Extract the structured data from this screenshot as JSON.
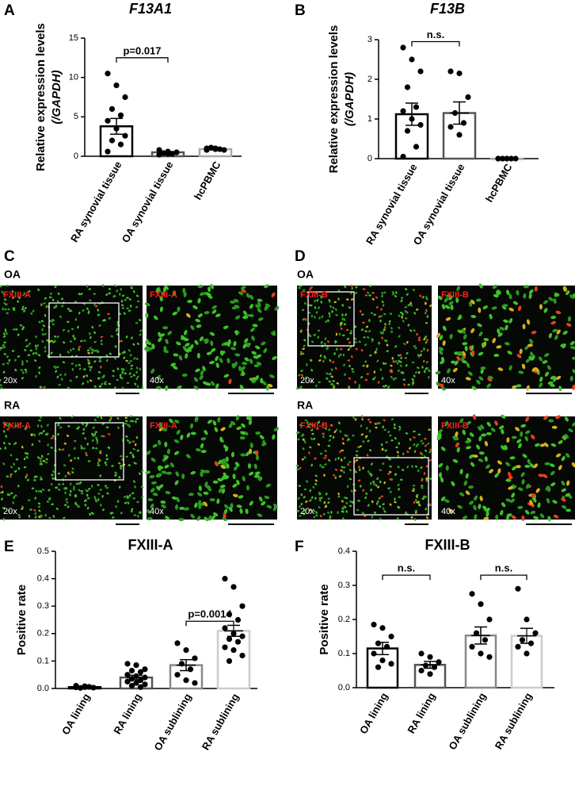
{
  "chart_data": [
    {
      "type": "bar",
      "label": "A",
      "title": "F13A1",
      "ylabel": [
        "Relative expression levels",
        "(/GAPDH)"
      ],
      "categories": [
        "RA synovial tissue",
        "OA synovial tissue",
        "hcPBMC"
      ],
      "values": [
        3.8,
        0.5,
        0.9
      ],
      "errors": [
        1.0,
        0.1,
        0.1
      ],
      "points": [
        [
          10.5,
          9,
          7.5,
          6,
          5.2,
          4.5,
          3.5,
          2.6,
          2,
          1.5,
          0.6
        ],
        [
          0.8,
          0.6,
          0.5,
          0.4,
          0.3,
          0.2,
          0.3
        ],
        [
          1.0,
          0.9,
          0.8,
          1.1,
          0.9,
          0.8,
          1.0
        ]
      ],
      "colors": [
        "#000000",
        "#555555",
        "#aaaaaa"
      ],
      "ylim": [
        0,
        15
      ],
      "yticks": [
        0,
        5,
        10,
        15
      ],
      "annotations": [
        {
          "text": "p=0.017",
          "from": 0,
          "to": 1,
          "y": 12.5
        }
      ]
    },
    {
      "type": "bar",
      "label": "B",
      "title": "F13B",
      "ylabel": [
        "Relative expression levels",
        "(/GAPDH)"
      ],
      "categories": [
        "RA synovial tissue",
        "OA synovial tissue",
        "hcPBMC"
      ],
      "values": [
        1.12,
        1.15,
        0.0
      ],
      "errors": [
        0.28,
        0.28,
        0.0
      ],
      "points": [
        [
          2.8,
          2.5,
          2.2,
          1.8,
          1.3,
          1.2,
          1.0,
          0.85,
          0.7,
          0.3,
          0.05
        ],
        [
          2.2,
          2.15,
          1.55,
          1.15,
          0.9,
          0.8,
          0.6
        ],
        [
          0,
          0,
          0,
          0,
          0,
          0,
          0
        ]
      ],
      "colors": [
        "#000000",
        "#555555",
        "#aaaaaa"
      ],
      "ylim": [
        0,
        3
      ],
      "yticks": [
        0,
        1,
        2,
        3
      ],
      "annotations": [
        {
          "text": "n.s.",
          "from": 0,
          "to": 1,
          "y": 2.95
        }
      ]
    },
    {
      "type": "bar",
      "label": "E",
      "title": "FXIII-A",
      "ylabel": [
        "Positive rate"
      ],
      "categories": [
        "OA lining",
        "RA lining",
        "OA sublining",
        "RA sublining"
      ],
      "values": [
        0.005,
        0.04,
        0.085,
        0.21
      ],
      "errors": [
        0.002,
        0.008,
        0.02,
        0.02
      ],
      "points": [
        [
          0.01,
          0.005,
          0.003,
          0.002,
          0.006,
          0.004,
          0.008
        ],
        [
          0.09,
          0.085,
          0.07,
          0.065,
          0.06,
          0.05,
          0.045,
          0.04,
          0.035,
          0.03,
          0.025,
          0.02,
          0.015,
          0.01,
          0.005
        ],
        [
          0.165,
          0.14,
          0.11,
          0.09,
          0.07,
          0.05,
          0.03,
          0.02
        ],
        [
          0.4,
          0.37,
          0.3,
          0.27,
          0.25,
          0.22,
          0.2,
          0.19,
          0.18,
          0.17,
          0.15,
          0.14,
          0.12,
          0.1
        ]
      ],
      "colors": [
        "#000000",
        "#555555",
        "#888888",
        "#cccccc"
      ],
      "ylim": [
        0,
        0.5
      ],
      "yticks": [
        {
          "value": 0,
          "label": "0.0"
        },
        0.1,
        0.2,
        0.3,
        0.4,
        0.5
      ],
      "annotations": [
        {
          "text": "p=0.0014",
          "from": 2,
          "to": 3,
          "y": 0.245
        }
      ]
    },
    {
      "type": "bar",
      "label": "F",
      "title": "FXIII-B",
      "ylabel": [
        "Positive rate"
      ],
      "categories": [
        "OA lining",
        "RA lining",
        "OA sublining",
        "RA sublining"
      ],
      "values": [
        0.115,
        0.067,
        0.153,
        0.152
      ],
      "errors": [
        0.018,
        0.01,
        0.025,
        0.022
      ],
      "points": [
        [
          0.185,
          0.175,
          0.15,
          0.13,
          0.12,
          0.1,
          0.08,
          0.07,
          0.06
        ],
        [
          0.1,
          0.09,
          0.075,
          0.065,
          0.06,
          0.05,
          0.04
        ],
        [
          0.275,
          0.245,
          0.2,
          0.16,
          0.14,
          0.12,
          0.1,
          0.09
        ],
        [
          0.29,
          0.2,
          0.16,
          0.14,
          0.13,
          0.12,
          0.1
        ]
      ],
      "colors": [
        "#000000",
        "#555555",
        "#888888",
        "#cccccc"
      ],
      "ylim": [
        0,
        0.4
      ],
      "yticks": [
        {
          "value": 0,
          "label": "0.0"
        },
        0.1,
        0.2,
        0.3,
        0.4
      ],
      "annotations": [
        {
          "text": "n.s.",
          "from": 0,
          "to": 1,
          "y": 0.33
        },
        {
          "text": "n.s.",
          "from": 2,
          "to": 3,
          "y": 0.33
        }
      ]
    }
  ],
  "micrographs": [
    {
      "label": "C",
      "rows": [
        {
          "group": "OA",
          "stain": "FXIII-A",
          "mags": [
            "20x",
            "40x"
          ]
        },
        {
          "group": "RA",
          "stain": "FXIII-A",
          "mags": [
            "20x",
            "40x"
          ]
        }
      ]
    },
    {
      "label": "D",
      "rows": [
        {
          "group": "OA",
          "stain": "FXIII-B",
          "mags": [
            "20x",
            "40x"
          ]
        },
        {
          "group": "RA",
          "stain": "FXIII-B",
          "mags": [
            "20x",
            "40x"
          ]
        }
      ]
    }
  ]
}
